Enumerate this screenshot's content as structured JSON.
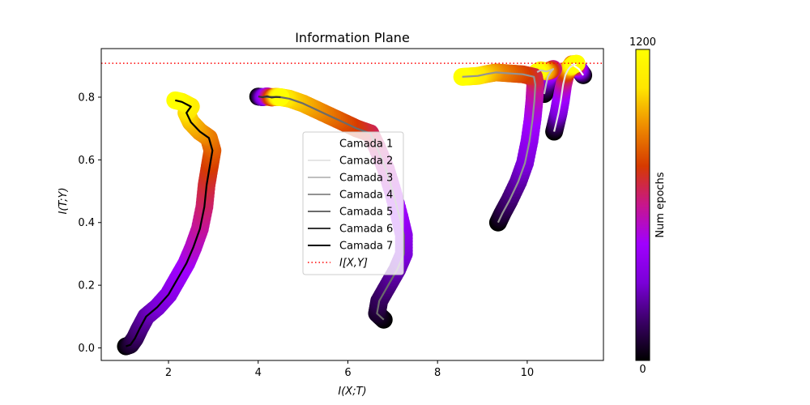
{
  "chart_data": {
    "type": "line",
    "title": "Information Plane",
    "xlabel": "I(X;T)",
    "ylabel": "I(T;Y)",
    "xlim": [
      0.5,
      11.7
    ],
    "ylim": [
      -0.04,
      0.955
    ],
    "xticks": [
      2,
      4,
      6,
      8,
      10
    ],
    "yticks": [
      0.0,
      0.2,
      0.4,
      0.6,
      0.8
    ],
    "grid": false,
    "legend_position": "center",
    "colorbar": {
      "label": "Num epochs",
      "min": 0,
      "max": 1200,
      "colormap": "gnuplot",
      "colors": [
        "#000000",
        "#3a0066",
        "#7a00d8",
        "#a000ff",
        "#c7168c",
        "#d63a00",
        "#ee8a00",
        "#ffe500",
        "#ffff00"
      ]
    },
    "reference_line": {
      "name": "I[X,Y]",
      "y": 0.908,
      "color": "#ff0000",
      "style": "dotted"
    },
    "series": [
      {
        "name": "Camada 1",
        "line_color": "#ffffff",
        "points": [
          [
            11.25,
            0.87
          ],
          [
            11.2,
            0.88
          ],
          [
            11.15,
            0.89
          ],
          [
            11.1,
            0.895
          ],
          [
            11.05,
            0.9
          ],
          [
            11.0,
            0.905
          ],
          [
            11.05,
            0.905
          ],
          [
            11.1,
            0.907
          ]
        ]
      },
      {
        "name": "Camada 2",
        "line_color": "#e5e5e5",
        "points": [
          [
            10.6,
            0.69
          ],
          [
            10.65,
            0.72
          ],
          [
            10.7,
            0.75
          ],
          [
            10.75,
            0.79
          ],
          [
            10.8,
            0.84
          ],
          [
            10.85,
            0.87
          ],
          [
            10.9,
            0.885
          ],
          [
            10.95,
            0.895
          ],
          [
            11.0,
            0.9
          ],
          [
            11.05,
            0.905
          ]
        ]
      },
      {
        "name": "Camada 3",
        "line_color": "#bfbfbf",
        "points": [
          [
            10.38,
            0.81
          ],
          [
            10.42,
            0.84
          ],
          [
            10.46,
            0.865
          ],
          [
            10.52,
            0.88
          ],
          [
            10.58,
            0.89
          ],
          [
            10.5,
            0.885
          ],
          [
            10.42,
            0.882
          ],
          [
            10.3,
            0.886
          ],
          [
            10.22,
            0.88
          ]
        ]
      },
      {
        "name": "Camada 4",
        "line_color": "#939393",
        "points": [
          [
            9.35,
            0.4
          ],
          [
            9.45,
            0.43
          ],
          [
            9.6,
            0.47
          ],
          [
            9.8,
            0.53
          ],
          [
            9.95,
            0.59
          ],
          [
            10.05,
            0.66
          ],
          [
            10.12,
            0.73
          ],
          [
            10.16,
            0.79
          ],
          [
            10.18,
            0.84
          ],
          [
            10.15,
            0.865
          ],
          [
            9.9,
            0.873
          ],
          [
            9.6,
            0.876
          ],
          [
            9.3,
            0.879
          ],
          [
            9.1,
            0.874
          ],
          [
            8.9,
            0.868
          ],
          [
            8.7,
            0.866
          ],
          [
            8.55,
            0.865
          ]
        ]
      },
      {
        "name": "Camada 5",
        "line_color": "#6b6b6b",
        "points": [
          [
            6.8,
            0.09
          ],
          [
            6.65,
            0.11
          ],
          [
            6.7,
            0.15
          ],
          [
            6.9,
            0.2
          ],
          [
            7.1,
            0.25
          ],
          [
            7.25,
            0.3
          ],
          [
            7.25,
            0.36
          ],
          [
            7.15,
            0.42
          ],
          [
            7.0,
            0.5
          ],
          [
            6.85,
            0.57
          ],
          [
            6.65,
            0.64
          ],
          [
            6.5,
            0.685
          ],
          [
            6.2,
            0.7
          ],
          [
            5.9,
            0.72
          ],
          [
            5.6,
            0.74
          ],
          [
            5.3,
            0.76
          ],
          [
            5.0,
            0.78
          ],
          [
            4.7,
            0.795
          ],
          [
            4.5,
            0.8
          ],
          [
            4.3,
            0.801
          ],
          [
            4.15,
            0.8
          ]
        ]
      },
      {
        "name": "Camada 6",
        "line_color": "#353535",
        "points": [
          [
            4.0,
            0.802
          ],
          [
            4.1,
            0.8
          ],
          [
            4.2,
            0.803
          ],
          [
            4.3,
            0.799
          ],
          [
            4.4,
            0.801
          ],
          [
            4.5,
            0.8
          ]
        ]
      },
      {
        "name": "Camada 7",
        "line_color": "#000000",
        "points": [
          [
            1.05,
            0.005
          ],
          [
            1.15,
            0.01
          ],
          [
            1.25,
            0.03
          ],
          [
            1.35,
            0.06
          ],
          [
            1.5,
            0.1
          ],
          [
            1.75,
            0.13
          ],
          [
            2.0,
            0.17
          ],
          [
            2.2,
            0.22
          ],
          [
            2.4,
            0.27
          ],
          [
            2.55,
            0.32
          ],
          [
            2.7,
            0.38
          ],
          [
            2.8,
            0.45
          ],
          [
            2.85,
            0.52
          ],
          [
            2.92,
            0.58
          ],
          [
            2.98,
            0.63
          ],
          [
            2.9,
            0.67
          ],
          [
            2.7,
            0.69
          ],
          [
            2.5,
            0.72
          ],
          [
            2.4,
            0.75
          ],
          [
            2.5,
            0.77
          ],
          [
            2.3,
            0.785
          ],
          [
            2.15,
            0.79
          ]
        ]
      }
    ]
  }
}
